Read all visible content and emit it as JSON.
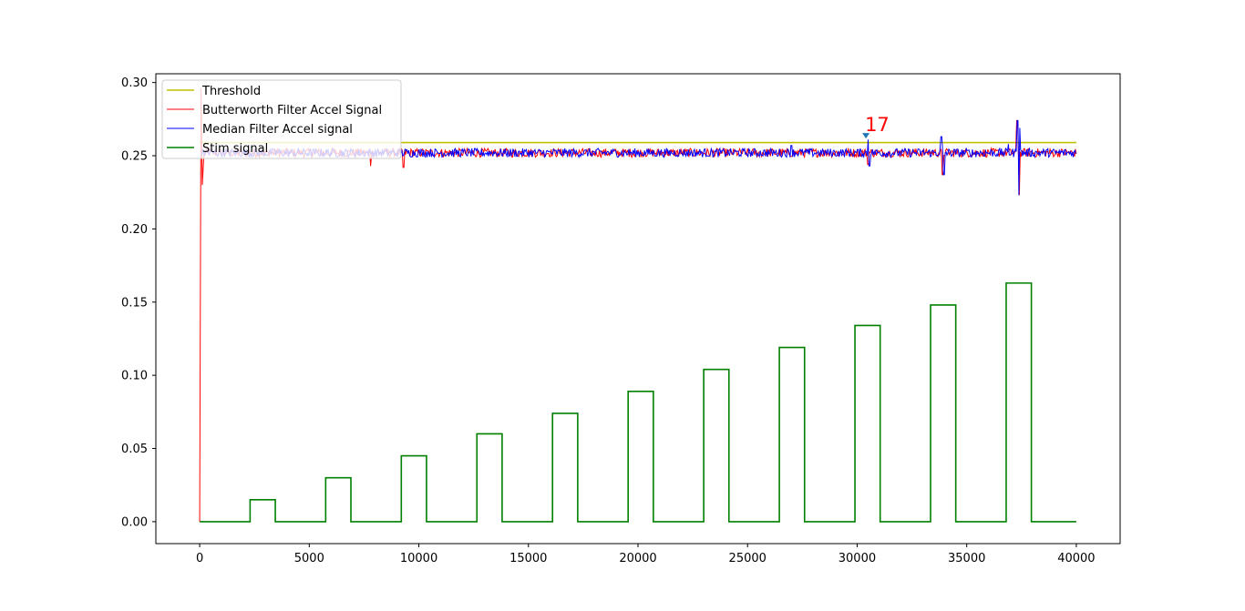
{
  "chart_data": {
    "type": "line",
    "title": "",
    "xlabel": "",
    "ylabel": "",
    "xlim": [
      -2000,
      42000
    ],
    "ylim": [
      -0.015,
      0.306
    ],
    "xticks": [
      0,
      5000,
      10000,
      15000,
      20000,
      25000,
      30000,
      35000,
      40000
    ],
    "xtick_labels": [
      "0",
      "5000",
      "10000",
      "15000",
      "20000",
      "25000",
      "30000",
      "35000",
      "40000"
    ],
    "yticks": [
      0.0,
      0.05,
      0.1,
      0.15,
      0.2,
      0.25,
      0.3
    ],
    "ytick_labels": [
      "0.00",
      "0.05",
      "0.10",
      "0.15",
      "0.20",
      "0.25",
      "0.30"
    ],
    "grid": false,
    "legend_position": "upper-left",
    "series": [
      {
        "name": "Threshold",
        "color": "#bfbf00",
        "points": [
          [
            0,
            0.259
          ],
          [
            40000,
            0.259
          ]
        ]
      },
      {
        "name": "Butterworth Filter Accel Signal",
        "color": "#ff0000",
        "baseline": 0.252,
        "spikes": [
          [
            0,
            0.0
          ],
          [
            60,
            0.296
          ],
          [
            120,
            0.23
          ],
          [
            7800,
            0.243
          ],
          [
            9300,
            0.242
          ],
          [
            30500,
            0.244
          ],
          [
            33900,
            0.237
          ],
          [
            37300,
            0.274
          ],
          [
            37400,
            0.223
          ]
        ]
      },
      {
        "name": "Median Filter Accel signal",
        "color": "#0000ff",
        "baseline": 0.252,
        "spikes": [
          [
            27000,
            0.257
          ],
          [
            30500,
            0.261
          ],
          [
            30550,
            0.243
          ],
          [
            33850,
            0.263
          ],
          [
            33950,
            0.237
          ],
          [
            36900,
            0.258
          ],
          [
            37320,
            0.274
          ],
          [
            37380,
            0.223
          ],
          [
            37420,
            0.269
          ]
        ]
      },
      {
        "name": "Stim signal",
        "color": "#008000",
        "pulses": [
          {
            "start": 2300,
            "end": 3450,
            "amplitude": 0.015
          },
          {
            "start": 5750,
            "end": 6900,
            "amplitude": 0.03
          },
          {
            "start": 9200,
            "end": 10350,
            "amplitude": 0.045
          },
          {
            "start": 12650,
            "end": 13800,
            "amplitude": 0.06
          },
          {
            "start": 16100,
            "end": 17250,
            "amplitude": 0.074
          },
          {
            "start": 19550,
            "end": 20700,
            "amplitude": 0.089
          },
          {
            "start": 23000,
            "end": 24150,
            "amplitude": 0.104
          },
          {
            "start": 26450,
            "end": 27600,
            "amplitude": 0.119
          },
          {
            "start": 29900,
            "end": 31050,
            "amplitude": 0.134
          },
          {
            "start": 33350,
            "end": 34500,
            "amplitude": 0.148
          },
          {
            "start": 36800,
            "end": 37950,
            "amplitude": 0.163
          }
        ],
        "x_end": 40000
      }
    ],
    "annotations": [
      {
        "text": "17",
        "color": "#ff0000",
        "x": 30400,
        "y": 0.263
      }
    ]
  }
}
